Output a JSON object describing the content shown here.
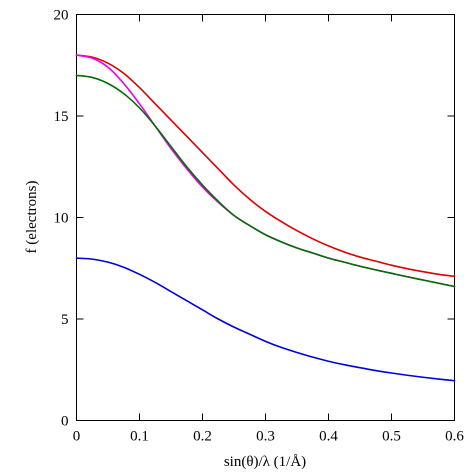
{
  "chart_data": {
    "type": "line",
    "title": "",
    "xlabel": "sin(θ)/λ (1/Å)",
    "ylabel": "f (electrons)",
    "xlim": [
      0,
      0.6
    ],
    "ylim": [
      0,
      20
    ],
    "grid": false,
    "x_ticks": [
      0,
      0.1,
      0.2,
      0.3,
      0.4,
      0.5,
      0.6
    ],
    "x_tick_labels": [
      "0",
      "0.1",
      "0.2",
      "0.3",
      "0.4",
      "0.5",
      "0.6"
    ],
    "y_ticks": [
      0,
      5,
      10,
      15,
      20
    ],
    "y_tick_labels": [
      "0",
      "5",
      "10",
      "15",
      "20"
    ],
    "x": [
      0,
      0.025,
      0.05,
      0.075,
      0.1,
      0.125,
      0.15,
      0.175,
      0.2,
      0.225,
      0.25,
      0.275,
      0.3,
      0.325,
      0.35,
      0.375,
      0.4,
      0.425,
      0.45,
      0.475,
      0.5,
      0.525,
      0.55,
      0.575,
      0.6
    ],
    "series": [
      {
        "color": "#dd0000",
        "values": [
          18.0,
          17.9,
          17.6,
          17.1,
          16.4,
          15.6,
          14.8,
          14.0,
          13.2,
          12.4,
          11.6,
          10.9,
          10.3,
          9.8,
          9.35,
          8.95,
          8.6,
          8.3,
          8.05,
          7.85,
          7.65,
          7.48,
          7.33,
          7.2,
          7.1
        ]
      },
      {
        "color": "#ee00ee",
        "values": [
          18.0,
          17.85,
          17.4,
          16.6,
          15.6,
          14.5,
          13.4,
          12.4,
          11.5,
          10.75,
          10.1,
          9.6,
          9.15,
          8.8,
          8.5,
          8.25,
          8.0,
          7.8,
          7.6,
          7.42,
          7.25,
          7.08,
          6.92,
          6.76,
          6.6
        ]
      },
      {
        "color": "#007000",
        "values": [
          17.0,
          16.9,
          16.6,
          16.1,
          15.4,
          14.5,
          13.5,
          12.5,
          11.6,
          10.8,
          10.1,
          9.6,
          9.15,
          8.8,
          8.5,
          8.25,
          8.0,
          7.8,
          7.6,
          7.42,
          7.25,
          7.08,
          6.92,
          6.76,
          6.6
        ]
      },
      {
        "color": "#0000dd",
        "values": [
          8.0,
          7.95,
          7.8,
          7.55,
          7.2,
          6.8,
          6.35,
          5.9,
          5.45,
          5.0,
          4.6,
          4.25,
          3.9,
          3.6,
          3.35,
          3.12,
          2.92,
          2.75,
          2.6,
          2.46,
          2.34,
          2.23,
          2.13,
          2.04,
          1.96
        ]
      }
    ]
  }
}
